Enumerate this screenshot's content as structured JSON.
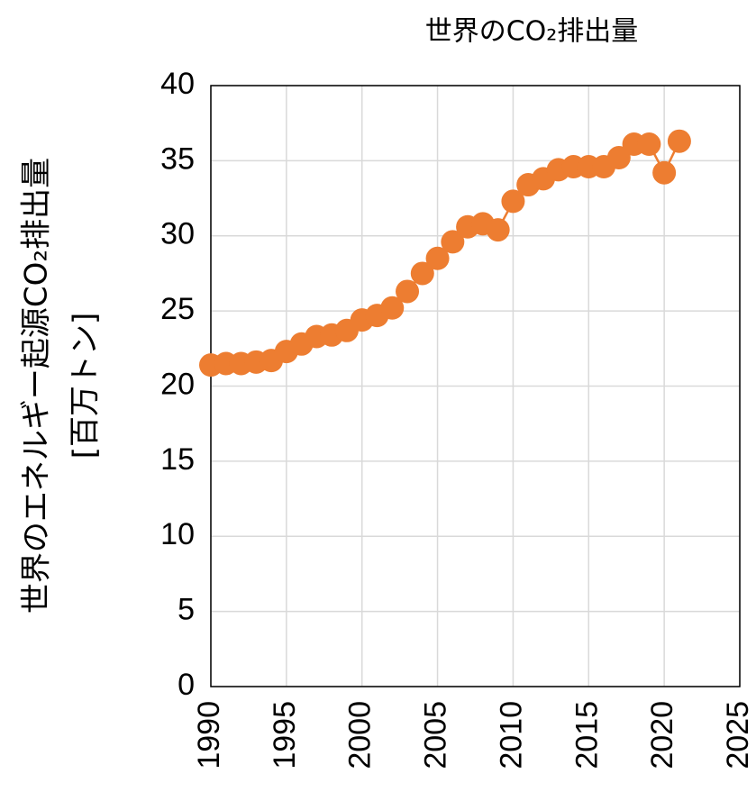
{
  "chart_data": {
    "type": "line",
    "title": "世界のCO₂排出量",
    "y_label": [
      "世界のエネルギー起源CO₂排出量",
      "[百万トン]"
    ],
    "x": [
      1990,
      1991,
      1992,
      1993,
      1994,
      1995,
      1996,
      1997,
      1998,
      1999,
      2000,
      2001,
      2002,
      2003,
      2004,
      2005,
      2006,
      2007,
      2008,
      2009,
      2010,
      2011,
      2012,
      2013,
      2014,
      2015,
      2016,
      2017,
      2018,
      2019,
      2020,
      2021
    ],
    "series": [
      {
        "name": "世界のCO₂排出量",
        "color": "#ed7d31",
        "values": [
          21.4,
          21.5,
          21.5,
          21.6,
          21.7,
          22.3,
          22.8,
          23.3,
          23.4,
          23.7,
          24.4,
          24.7,
          25.2,
          26.3,
          27.5,
          28.5,
          29.6,
          30.6,
          30.8,
          30.4,
          32.3,
          33.4,
          33.8,
          34.4,
          34.6,
          34.6,
          34.6,
          35.2,
          36.1,
          36.1,
          34.2,
          36.3
        ]
      }
    ],
    "xlim": [
      1990,
      2025
    ],
    "xticks": [
      1990,
      1995,
      2000,
      2005,
      2010,
      2015,
      2020,
      2025
    ],
    "ylim": [
      0,
      40
    ],
    "yticks": [
      0,
      5,
      10,
      15,
      20,
      25,
      30,
      35,
      40
    ],
    "grid": true
  }
}
